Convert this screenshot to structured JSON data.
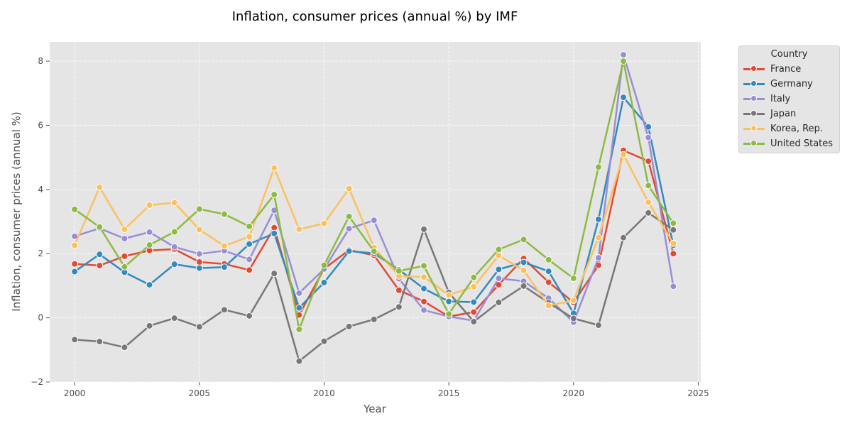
{
  "chart_data": {
    "type": "line",
    "title": "Inflation, consumer prices (annual %) by IMF",
    "xlabel": "Year",
    "ylabel": "Inflation, consumer prices (annual %)",
    "xlim": [
      1999,
      2025.1
    ],
    "ylim": [
      -2,
      8.6
    ],
    "xticks": [
      2000,
      2005,
      2010,
      2015,
      2020,
      2025
    ],
    "xtick_labels": [
      "2000",
      "2005",
      "2010",
      "2015",
      "2020",
      "2025"
    ],
    "yticks": [
      -2,
      0,
      2,
      4,
      6,
      8
    ],
    "ytick_labels": [
      "−2",
      "0",
      "2",
      "4",
      "6",
      "8"
    ],
    "grid": true,
    "legend": {
      "title": "Country",
      "placement": "outside-top-right"
    },
    "x": [
      2000,
      2001,
      2002,
      2003,
      2004,
      2005,
      2006,
      2007,
      2008,
      2009,
      2010,
      2011,
      2012,
      2013,
      2014,
      2015,
      2016,
      2017,
      2018,
      2019,
      2020,
      2021,
      2022,
      2023,
      2024
    ],
    "series": [
      {
        "name": "France",
        "color": "#E24A33",
        "values": [
          1.68,
          1.63,
          1.92,
          2.1,
          2.14,
          1.74,
          1.68,
          1.49,
          2.81,
          0.09,
          1.53,
          2.11,
          1.95,
          0.86,
          0.51,
          0.04,
          0.18,
          1.03,
          1.85,
          1.11,
          0.48,
          1.64,
          5.22,
          4.88,
          2.0
        ]
      },
      {
        "name": "Germany",
        "color": "#348ABD",
        "values": [
          1.44,
          1.98,
          1.42,
          1.03,
          1.67,
          1.55,
          1.58,
          2.3,
          2.63,
          0.31,
          1.1,
          2.08,
          2.01,
          1.5,
          0.91,
          0.51,
          0.49,
          1.51,
          1.73,
          1.45,
          0.14,
          3.07,
          6.87,
          5.95,
          2.26
        ]
      },
      {
        "name": "Italy",
        "color": "#988ED5",
        "values": [
          2.54,
          2.79,
          2.47,
          2.67,
          2.21,
          1.99,
          2.09,
          1.82,
          3.35,
          0.77,
          1.52,
          2.78,
          3.04,
          1.22,
          0.24,
          0.04,
          -0.09,
          1.23,
          1.14,
          0.61,
          -0.14,
          1.87,
          8.2,
          5.62,
          0.98
        ]
      },
      {
        "name": "Japan",
        "color": "#777777",
        "values": [
          -0.68,
          -0.74,
          -0.92,
          -0.25,
          -0.01,
          -0.28,
          0.25,
          0.06,
          1.38,
          -1.35,
          -0.73,
          -0.27,
          -0.05,
          0.34,
          2.76,
          0.79,
          -0.12,
          0.48,
          0.99,
          0.47,
          -0.02,
          -0.23,
          2.5,
          3.27,
          2.74
        ]
      },
      {
        "name": "Korea, Rep.",
        "color": "#FBC15E",
        "values": [
          2.26,
          4.07,
          2.76,
          3.51,
          3.59,
          2.75,
          2.24,
          2.53,
          4.67,
          2.76,
          2.94,
          4.03,
          2.19,
          1.3,
          1.27,
          0.71,
          0.97,
          1.94,
          1.48,
          0.38,
          0.54,
          2.5,
          5.09,
          3.6,
          2.32
        ]
      },
      {
        "name": "United States",
        "color": "#8EBA42",
        "values": [
          3.38,
          2.83,
          1.59,
          2.27,
          2.68,
          3.39,
          3.23,
          2.85,
          3.84,
          -0.36,
          1.64,
          3.16,
          2.07,
          1.46,
          1.62,
          0.12,
          1.26,
          2.13,
          2.44,
          1.81,
          1.23,
          4.7,
          8.0,
          4.12,
          2.95
        ]
      }
    ]
  }
}
